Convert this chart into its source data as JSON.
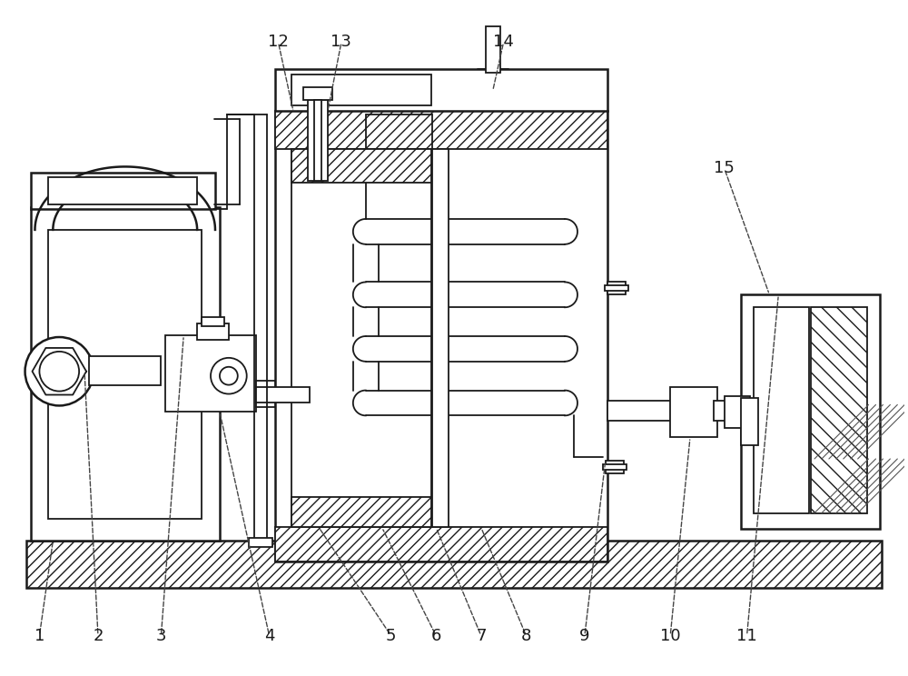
{
  "bg_color": "#ffffff",
  "line_color": "#1a1a1a",
  "fig_width": 10.0,
  "fig_height": 7.44,
  "lw": 1.3,
  "lw2": 1.8
}
